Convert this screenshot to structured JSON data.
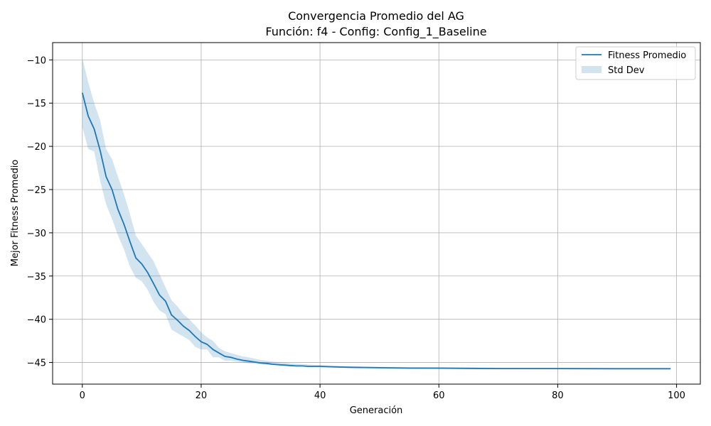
{
  "chart_data": {
    "type": "line",
    "title": "Convergencia Promedio del AG",
    "subtitle": "Función: f4 - Config: Config_1_Baseline",
    "xlabel": "Generación",
    "ylabel": "Mejor Fitness Promedio",
    "xlim": [
      -5,
      104
    ],
    "ylim": [
      -47.5,
      -8
    ],
    "xticks": [
      0,
      20,
      40,
      60,
      80,
      100
    ],
    "yticks": [
      -10,
      -15,
      -20,
      -25,
      -30,
      -35,
      -40,
      -45
    ],
    "xtick_labels": [
      "0",
      "20",
      "40",
      "60",
      "80",
      "100"
    ],
    "ytick_labels": [
      "−10",
      "−15",
      "−20",
      "−25",
      "−30",
      "−35",
      "−40",
      "−45"
    ],
    "grid": true,
    "legend_position": "top-right",
    "colors": {
      "line": "#1f77b4",
      "band": "#1f77b4"
    },
    "series": [
      {
        "name": "Fitness Promedio",
        "kind": "line",
        "x": [
          0,
          1,
          2,
          3,
          4,
          5,
          6,
          7,
          8,
          9,
          10,
          11,
          12,
          13,
          14,
          15,
          16,
          17,
          18,
          19,
          20,
          21,
          22,
          23,
          24,
          25,
          26,
          27,
          28,
          29,
          30,
          31,
          32,
          33,
          34,
          35,
          36,
          37,
          38,
          39,
          40,
          42,
          45,
          50,
          55,
          60,
          65,
          70,
          80,
          90,
          99
        ],
        "y": [
          -13.8,
          -16.5,
          -18.0,
          -20.5,
          -23.5,
          -25.0,
          -27.3,
          -29.0,
          -31.0,
          -32.9,
          -33.6,
          -34.6,
          -35.9,
          -37.2,
          -37.9,
          -39.5,
          -40.1,
          -40.8,
          -41.3,
          -42.0,
          -42.6,
          -42.9,
          -43.5,
          -43.9,
          -44.3,
          -44.4,
          -44.6,
          -44.75,
          -44.85,
          -44.95,
          -45.05,
          -45.1,
          -45.2,
          -45.25,
          -45.3,
          -45.35,
          -45.4,
          -45.4,
          -45.45,
          -45.45,
          -45.45,
          -45.5,
          -45.55,
          -45.6,
          -45.65,
          -45.65,
          -45.68,
          -45.7,
          -45.7,
          -45.72,
          -45.72
        ]
      },
      {
        "name": "Std Dev",
        "kind": "band",
        "x": [
          0,
          1,
          2,
          3,
          4,
          5,
          6,
          7,
          8,
          9,
          10,
          11,
          12,
          13,
          14,
          15,
          16,
          17,
          18,
          19,
          20,
          21,
          22,
          23,
          24,
          25,
          26,
          27,
          28,
          29,
          30,
          32,
          35,
          40,
          45,
          50,
          60,
          70,
          80,
          90,
          99
        ],
        "upper": [
          -9.8,
          -12.6,
          -15.0,
          -17.0,
          -20.3,
          -21.5,
          -23.5,
          -25.5,
          -27.8,
          -30.3,
          -31.3,
          -32.3,
          -33.3,
          -34.8,
          -36.3,
          -37.8,
          -38.5,
          -39.4,
          -40.0,
          -40.7,
          -41.5,
          -42.1,
          -42.5,
          -43.3,
          -43.7,
          -43.9,
          -44.1,
          -44.3,
          -44.4,
          -44.55,
          -44.7,
          -44.9,
          -45.1,
          -45.3,
          -45.45,
          -45.5,
          -45.55,
          -45.6,
          -45.62,
          -45.65,
          -45.65
        ],
        "lower": [
          -17.8,
          -20.3,
          -20.6,
          -24.0,
          -26.7,
          -28.4,
          -30.3,
          -31.9,
          -33.9,
          -35.2,
          -35.6,
          -36.6,
          -38.0,
          -39.0,
          -39.4,
          -41.2,
          -41.6,
          -42.0,
          -42.4,
          -43.2,
          -43.5,
          -43.5,
          -44.4,
          -44.4,
          -44.8,
          -44.8,
          -44.9,
          -45.0,
          -45.1,
          -45.15,
          -45.2,
          -45.3,
          -45.45,
          -45.55,
          -45.65,
          -45.7,
          -45.75,
          -45.78,
          -45.8,
          -45.8,
          -45.8
        ]
      }
    ],
    "legend": [
      {
        "label": "Fitness Promedio",
        "kind": "line"
      },
      {
        "label": "Std Dev",
        "kind": "band"
      }
    ]
  }
}
